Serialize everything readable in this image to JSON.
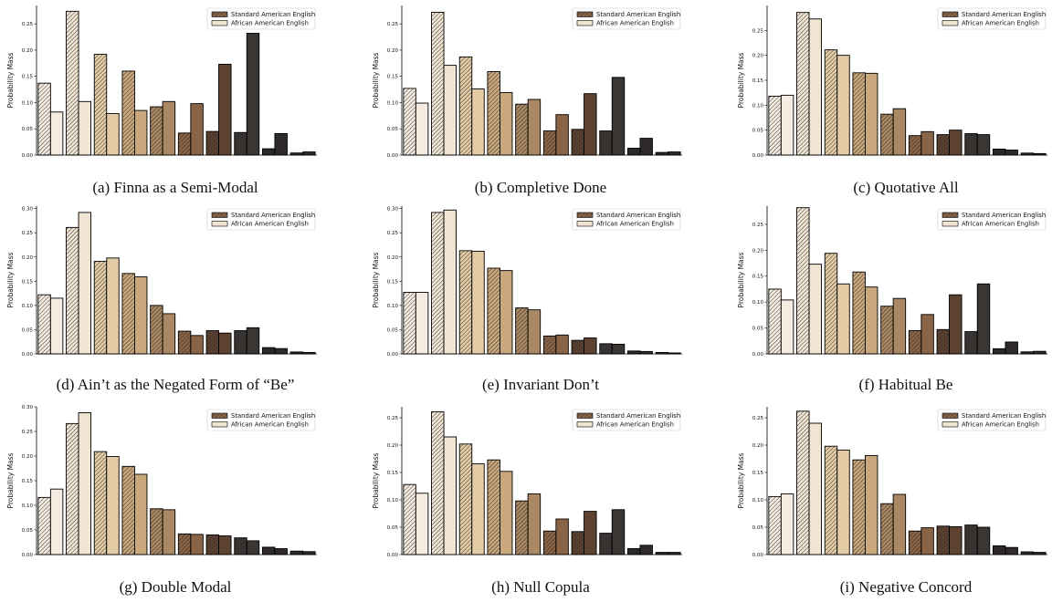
{
  "legend": [
    "Standard American English",
    "African American English"
  ],
  "colors": {
    "shades": [
      "#f5ebe0",
      "#f0e4d3",
      "#e3cca5",
      "#caa87e",
      "#a98863",
      "#8a6446",
      "#5e4231",
      "#3a3634",
      "#2d2a29"
    ]
  },
  "chart_data": [
    {
      "type": "bar",
      "caption": "(a) Finna as a Semi-Modal",
      "ylabel": "Probability Mass",
      "ylim": [
        0,
        0.285
      ],
      "yticks": [
        "0.00",
        "0.05",
        "0.10",
        "0.15",
        "0.20",
        "0.25"
      ],
      "yticks_values": [
        0,
        0.05,
        0.1,
        0.15,
        0.2,
        0.25
      ],
      "series": [
        {
          "name": "Standard American English",
          "values": [
            0.137,
            0.274,
            0.192,
            0.16,
            0.092,
            0.042,
            0.045,
            0.043,
            0.012,
            0.004
          ]
        },
        {
          "name": "African American English",
          "values": [
            0.082,
            0.102,
            0.079,
            0.085,
            0.102,
            0.098,
            0.173,
            0.232,
            0.041,
            0.006
          ]
        }
      ]
    },
    {
      "type": "bar",
      "caption": "(b) Completive Done",
      "ylabel": "Probability Mass",
      "ylim": [
        0,
        0.285
      ],
      "yticks": [
        "0.00",
        "0.05",
        "0.10",
        "0.15",
        "0.20",
        "0.25"
      ],
      "yticks_values": [
        0,
        0.05,
        0.1,
        0.15,
        0.2,
        0.25
      ],
      "series": [
        {
          "name": "Standard American English",
          "values": [
            0.127,
            0.272,
            0.187,
            0.159,
            0.097,
            0.046,
            0.049,
            0.046,
            0.013,
            0.005
          ]
        },
        {
          "name": "African American English",
          "values": [
            0.099,
            0.171,
            0.126,
            0.119,
            0.106,
            0.077,
            0.117,
            0.148,
            0.032,
            0.006
          ]
        }
      ]
    },
    {
      "type": "bar",
      "caption": "(c) Quotative All",
      "ylabel": "Probability Mass",
      "ylim": [
        0,
        0.3
      ],
      "yticks": [
        "0.00",
        "0.05",
        "0.10",
        "0.15",
        "0.20",
        "0.25"
      ],
      "yticks_values": [
        0,
        0.05,
        0.1,
        0.15,
        0.2,
        0.25
      ],
      "series": [
        {
          "name": "Standard American English",
          "values": [
            0.118,
            0.286,
            0.211,
            0.165,
            0.082,
            0.039,
            0.041,
            0.043,
            0.012,
            0.004
          ]
        },
        {
          "name": "African American English",
          "values": [
            0.12,
            0.273,
            0.2,
            0.164,
            0.093,
            0.047,
            0.05,
            0.041,
            0.01,
            0.003
          ]
        }
      ]
    },
    {
      "type": "bar",
      "caption": "(d) Ain’t as the Negated Form of “Be”",
      "ylabel": "Probability Mass",
      "ylim": [
        0,
        0.305
      ],
      "yticks": [
        "0.00",
        "0.05",
        "0.10",
        "0.15",
        "0.20",
        "0.25",
        "0.30"
      ],
      "yticks_values": [
        0,
        0.05,
        0.1,
        0.15,
        0.2,
        0.25,
        0.3
      ],
      "series": [
        {
          "name": "Standard American English",
          "values": [
            0.122,
            0.261,
            0.191,
            0.166,
            0.1,
            0.047,
            0.048,
            0.048,
            0.013,
            0.004
          ]
        },
        {
          "name": "African American English",
          "values": [
            0.115,
            0.292,
            0.198,
            0.159,
            0.083,
            0.038,
            0.043,
            0.054,
            0.011,
            0.003
          ]
        }
      ]
    },
    {
      "type": "bar",
      "caption": "(e) Invariant Don’t",
      "ylabel": "Probability Mass",
      "ylim": [
        0,
        0.305
      ],
      "yticks": [
        "0.00",
        "0.05",
        "0.10",
        "0.15",
        "0.20",
        "0.25",
        "0.30"
      ],
      "yticks_values": [
        0,
        0.05,
        0.1,
        0.15,
        0.2,
        0.25,
        0.3
      ],
      "series": [
        {
          "name": "Standard American English",
          "values": [
            0.127,
            0.292,
            0.213,
            0.177,
            0.095,
            0.037,
            0.028,
            0.021,
            0.006,
            0.003
          ]
        },
        {
          "name": "African American English",
          "values": [
            0.127,
            0.297,
            0.212,
            0.172,
            0.091,
            0.039,
            0.033,
            0.02,
            0.005,
            0.002
          ]
        }
      ]
    },
    {
      "type": "bar",
      "caption": "(f) Habitual Be",
      "ylabel": "Probability Mass",
      "ylim": [
        0,
        0.285
      ],
      "yticks": [
        "0.00",
        "0.05",
        "0.10",
        "0.15",
        "0.20",
        "0.25"
      ],
      "yticks_values": [
        0,
        0.05,
        0.1,
        0.15,
        0.2,
        0.25
      ],
      "series": [
        {
          "name": "Standard American English",
          "values": [
            0.125,
            0.282,
            0.194,
            0.158,
            0.092,
            0.045,
            0.047,
            0.043,
            0.01,
            0.004
          ]
        },
        {
          "name": "African American English",
          "values": [
            0.104,
            0.173,
            0.135,
            0.129,
            0.107,
            0.076,
            0.114,
            0.135,
            0.023,
            0.005
          ]
        }
      ]
    },
    {
      "type": "bar",
      "caption": "(g) Double Modal",
      "ylabel": "Probability Mass",
      "ylim": [
        0,
        0.3
      ],
      "yticks": [
        "0.00",
        "0.05",
        "0.10",
        "0.15",
        "0.20",
        "0.25",
        "0.30"
      ],
      "yticks_values": [
        0,
        0.05,
        0.1,
        0.15,
        0.2,
        0.25,
        0.3
      ],
      "series": [
        {
          "name": "Standard American English",
          "values": [
            0.116,
            0.266,
            0.209,
            0.179,
            0.093,
            0.042,
            0.04,
            0.034,
            0.015,
            0.007
          ]
        },
        {
          "name": "African American English",
          "values": [
            0.133,
            0.288,
            0.199,
            0.163,
            0.091,
            0.041,
            0.038,
            0.028,
            0.012,
            0.006
          ]
        }
      ]
    },
    {
      "type": "bar",
      "caption": "(h) Null Copula",
      "ylabel": "Probability Mass",
      "ylim": [
        0,
        0.27
      ],
      "yticks": [
        "0.00",
        "0.05",
        "0.10",
        "0.15",
        "0.20",
        "0.25"
      ],
      "yticks_values": [
        0,
        0.05,
        0.1,
        0.15,
        0.2,
        0.25
      ],
      "series": [
        {
          "name": "Standard American English",
          "values": [
            0.128,
            0.261,
            0.202,
            0.173,
            0.098,
            0.043,
            0.042,
            0.039,
            0.011,
            0.004
          ]
        },
        {
          "name": "African American English",
          "values": [
            0.112,
            0.215,
            0.166,
            0.152,
            0.111,
            0.065,
            0.079,
            0.082,
            0.017,
            0.004
          ]
        }
      ]
    },
    {
      "type": "bar",
      "caption": "(i) Negative Concord",
      "ylabel": "Probability Mass",
      "ylim": [
        0,
        0.27
      ],
      "yticks": [
        "0.00",
        "0.05",
        "0.10",
        "0.15",
        "0.20",
        "0.25"
      ],
      "yticks_values": [
        0,
        0.05,
        0.1,
        0.15,
        0.2,
        0.25
      ],
      "series": [
        {
          "name": "Standard American English",
          "values": [
            0.106,
            0.262,
            0.198,
            0.173,
            0.093,
            0.043,
            0.052,
            0.054,
            0.016,
            0.005
          ]
        },
        {
          "name": "African American English",
          "values": [
            0.111,
            0.24,
            0.191,
            0.181,
            0.11,
            0.049,
            0.051,
            0.05,
            0.013,
            0.004
          ]
        }
      ]
    }
  ]
}
